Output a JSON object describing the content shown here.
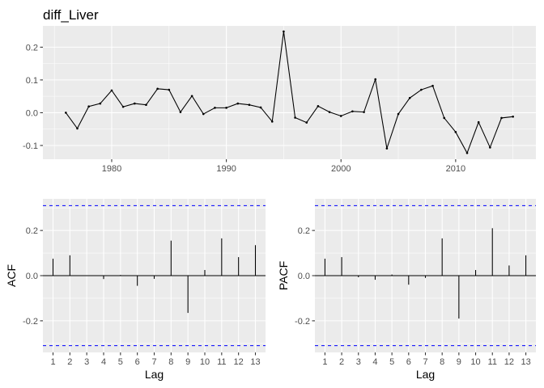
{
  "chart_data": [
    {
      "type": "line",
      "title": "diff_Liver",
      "xlabel": "",
      "ylabel": "",
      "x": [
        1976,
        1977,
        1978,
        1979,
        1980,
        1981,
        1982,
        1983,
        1984,
        1985,
        1986,
        1987,
        1988,
        1989,
        1990,
        1991,
        1992,
        1993,
        1994,
        1995,
        1996,
        1997,
        1998,
        1999,
        2000,
        2001,
        2002,
        2003,
        2004,
        2005,
        2006,
        2007,
        2008,
        2009,
        2010,
        2011,
        2012,
        2013,
        2014,
        2015
      ],
      "values": [
        0.0,
        -0.048,
        0.019,
        0.028,
        0.068,
        0.018,
        0.028,
        0.024,
        0.073,
        0.07,
        0.002,
        0.051,
        -0.004,
        0.015,
        0.015,
        0.028,
        0.024,
        0.016,
        -0.027,
        0.248,
        -0.015,
        -0.03,
        0.02,
        0.002,
        -0.01,
        0.004,
        0.002,
        0.102,
        -0.109,
        -0.004,
        0.045,
        0.07,
        0.082,
        -0.016,
        -0.059,
        -0.123,
        -0.029,
        -0.106,
        -0.016,
        -0.012
      ],
      "xlim": [
        1974.0,
        2017.0
      ],
      "ylim": [
        -0.142,
        0.265
      ],
      "xticks": [
        1980,
        1990,
        2000,
        2010
      ],
      "xtick_labels": [
        "1980",
        "1990",
        "2000",
        "2010"
      ],
      "yticks": [
        -0.1,
        0.0,
        0.1,
        0.2
      ],
      "ytick_labels": [
        "-0.1",
        "0.0",
        "0.1",
        "0.2"
      ],
      "grid": true
    },
    {
      "type": "bar",
      "title": "",
      "xlabel": "Lag",
      "ylabel": "ACF",
      "categories": [
        "1",
        "2",
        "3",
        "4",
        "5",
        "6",
        "7",
        "8",
        "9",
        "10",
        "11",
        "12",
        "13"
      ],
      "values": [
        0.075,
        0.09,
        0.001,
        -0.015,
        0.003,
        -0.045,
        -0.014,
        0.155,
        -0.165,
        0.025,
        0.165,
        0.082,
        0.135
      ],
      "confidence_bound": 0.31,
      "ylim": [
        -0.34,
        0.34
      ],
      "yticks": [
        -0.2,
        0.0,
        0.2
      ],
      "ytick_labels": [
        "-0.2",
        "0.0",
        "0.2"
      ],
      "grid": true
    },
    {
      "type": "bar",
      "title": "",
      "xlabel": "Lag",
      "ylabel": "PACF",
      "categories": [
        "1",
        "2",
        "3",
        "4",
        "5",
        "6",
        "7",
        "8",
        "9",
        "10",
        "11",
        "12",
        "13"
      ],
      "values": [
        0.075,
        0.082,
        -0.007,
        -0.018,
        0.005,
        -0.04,
        -0.01,
        0.165,
        -0.19,
        0.025,
        0.21,
        0.045,
        0.09
      ],
      "confidence_bound": 0.31,
      "ylim": [
        -0.34,
        0.34
      ],
      "yticks": [
        -0.2,
        0.0,
        0.2
      ],
      "ytick_labels": [
        "-0.2",
        "0.0",
        "0.2"
      ],
      "grid": true
    }
  ]
}
